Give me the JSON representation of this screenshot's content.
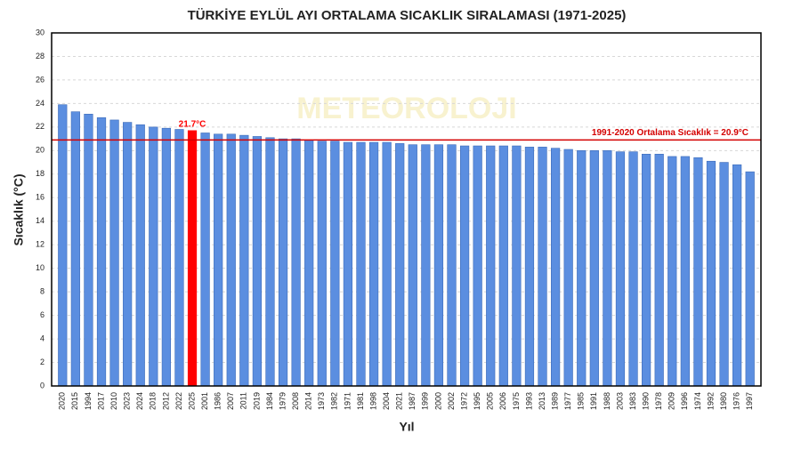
{
  "chart_data": {
    "type": "bar",
    "title": "TÜRKİYE EYLÜL AYI ORTALAMA SICAKLIK SIRALAMASI (1971-2025)",
    "watermark": "METEOROLOJI",
    "x_label": "Yıl",
    "y_label": "Sıcaklık (°C)",
    "categories": [
      "2020",
      "2015",
      "1994",
      "2017",
      "2010",
      "2023",
      "2024",
      "2018",
      "2012",
      "2022",
      "2025",
      "2001",
      "1986",
      "2007",
      "2011",
      "2019",
      "1984",
      "1979",
      "2008",
      "2014",
      "1973",
      "1982",
      "1971",
      "1981",
      "1998",
      "2004",
      "2021",
      "1987",
      "1999",
      "2000",
      "2002",
      "1972",
      "1995",
      "2005",
      "2006",
      "1975",
      "1993",
      "2013",
      "1989",
      "1977",
      "1985",
      "1991",
      "1988",
      "2003",
      "1983",
      "1990",
      "1978",
      "2009",
      "1996",
      "1974",
      "1992",
      "1980",
      "1976",
      "1997"
    ],
    "values": [
      23.9,
      23.3,
      23.1,
      22.8,
      22.6,
      22.4,
      22.2,
      22.0,
      21.9,
      21.8,
      21.7,
      21.5,
      21.4,
      21.4,
      21.3,
      21.2,
      21.1,
      21.0,
      21.0,
      20.9,
      20.8,
      20.8,
      20.7,
      20.7,
      20.7,
      20.7,
      20.6,
      20.5,
      20.5,
      20.5,
      20.5,
      20.4,
      20.4,
      20.4,
      20.4,
      20.4,
      20.3,
      20.3,
      20.2,
      20.1,
      20.0,
      20.0,
      20.0,
      19.9,
      19.9,
      19.7,
      19.7,
      19.5,
      19.5,
      19.4,
      19.1,
      19.0,
      18.8,
      18.2
    ],
    "value_labels": [
      null,
      null,
      null,
      null,
      null,
      null,
      null,
      null,
      null,
      null,
      "21.7°C",
      null,
      null,
      null,
      null,
      null,
      null,
      null,
      null,
      null,
      null,
      null,
      null,
      null,
      null,
      null,
      null,
      null,
      null,
      null,
      null,
      null,
      null,
      null,
      null,
      null,
      null,
      null,
      null,
      null,
      null,
      null,
      null,
      null,
      null,
      null,
      null,
      null,
      null,
      null,
      null,
      null,
      null,
      null
    ],
    "color": "#5b8ee0",
    "highlight_color": "#ff0000",
    "reference_line": {
      "value": 20.9,
      "label": "1991-2020 Ortalama Sıcaklık = 20.9°C",
      "color": "#d40000"
    },
    "ylim": [
      0,
      30
    ],
    "yticks": [
      0,
      2,
      4,
      6,
      8,
      10,
      12,
      14,
      16,
      18,
      20,
      22,
      24,
      26,
      28,
      30
    ],
    "grid": true
  }
}
